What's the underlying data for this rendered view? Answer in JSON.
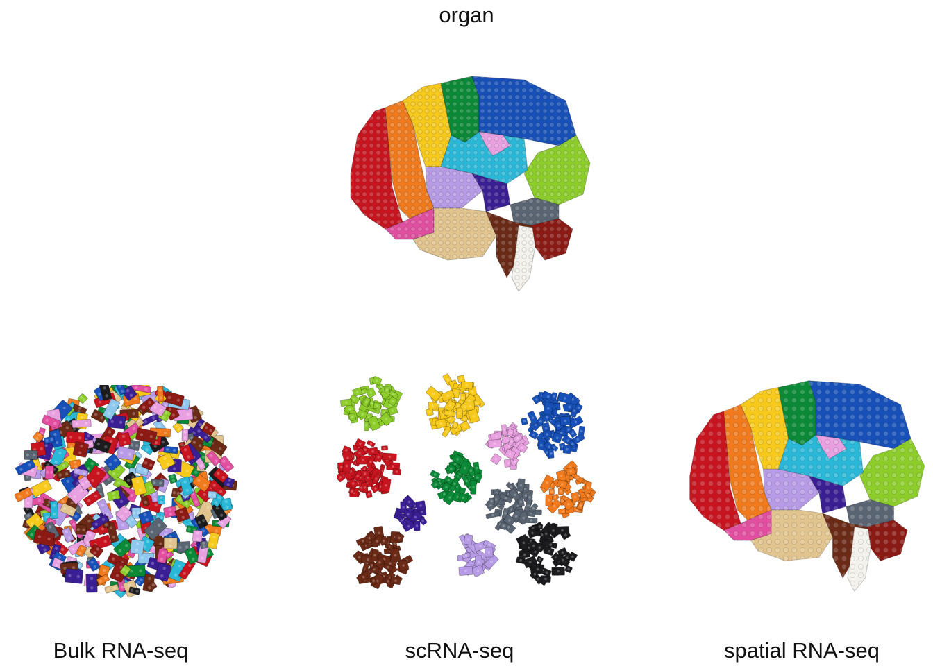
{
  "labels": {
    "organ": "organ",
    "bulk": "Bulk RNA-seq",
    "sc": "scRNA-seq",
    "spatial": "spatial RNA-seq"
  },
  "colors": {
    "red": "#c8141e",
    "orange": "#f07a1c",
    "yellow": "#f7c91a",
    "green": "#0a8a36",
    "blue": "#1650b8",
    "cyan": "#29b8d8",
    "pink": "#e8a0e0",
    "lime": "#8ccd2a",
    "lavender": "#b79be6",
    "purple": "#3a1e94",
    "magenta": "#e24ea0",
    "tan": "#e2c48e",
    "gray": "#5a6573",
    "darkred": "#8c1a14",
    "brown": "#6b2a16",
    "white": "#f4f2ec",
    "black": "#1c1c1e",
    "lightblue": "#8ec8ee"
  },
  "illustrations": {
    "organ": "lego-brain-assembled",
    "bulk": "lego-bricks-mixed-pile",
    "sc": "lego-bricks-sorted-clusters",
    "spatial": "lego-brain-flat-map"
  }
}
